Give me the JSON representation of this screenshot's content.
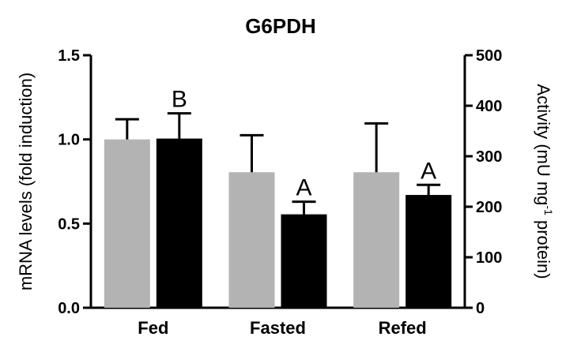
{
  "chart_data": {
    "type": "bar",
    "title": "G6PDH",
    "categories": [
      "Fed",
      "Fasted",
      "Refed"
    ],
    "ylabel_left": "mRNA levels (fold induction)",
    "ylabel_right_main": "Activity (mU mg",
    "ylabel_right_sup": "-1",
    "ylabel_right_tail": " protein)",
    "y_left": {
      "lim": [
        0,
        1.5
      ],
      "ticks": [
        "0.0",
        "0.5",
        "1.0",
        "1.5"
      ]
    },
    "y_right": {
      "lim": [
        0,
        500
      ],
      "ticks": [
        "0",
        "100",
        "200",
        "300",
        "400",
        "500"
      ]
    },
    "series": [
      {
        "axis": "left",
        "color": "#b3b3b3",
        "values": [
          1.0,
          0.805,
          0.805
        ],
        "errors": [
          0.12,
          0.22,
          0.29
        ],
        "labels": [
          "",
          "",
          ""
        ]
      },
      {
        "axis": "left",
        "color": "#000000",
        "values": [
          1.005,
          0.555,
          0.67
        ],
        "errors": [
          0.15,
          0.075,
          0.06
        ],
        "labels": [
          "B",
          "A",
          "A"
        ]
      }
    ],
    "grid": false
  }
}
